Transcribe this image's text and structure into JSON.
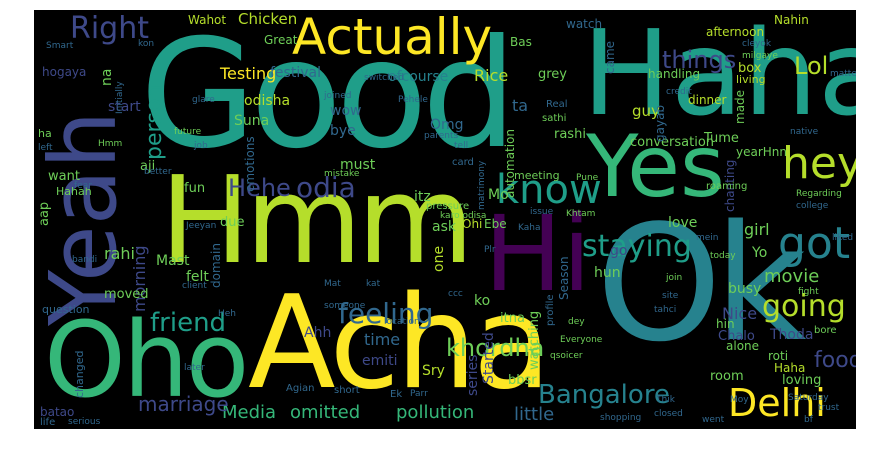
{
  "colors": {
    "background": "#000000",
    "page": "#ffffff",
    "palette": [
      "#fde725",
      "#b5de2b",
      "#6ece58",
      "#35b779",
      "#1f9e89",
      "#26828e",
      "#31688e",
      "#3e4989",
      "#482878",
      "#440154"
    ]
  },
  "words": {
    "good": "Good",
    "haha": "Haha",
    "yeah": "Yeah",
    "ok": "Ok",
    "hmm": "Hmm",
    "acha": "Acha",
    "oho": "Oho",
    "yes": "Yes",
    "hi": "Hi",
    "actually": "Actually",
    "right": "Right",
    "hey": "hey",
    "know": "know",
    "got": "got",
    "delhi": "Delhi",
    "bangalore": "Bangalore",
    "hehe": "Hehe",
    "odia": "odia",
    "going": "going",
    "friend": "friend",
    "staying": "staying",
    "khordha": "khordha",
    "feeling": "feeling",
    "lol": "Lol",
    "things": "things",
    "food": "food",
    "media": "Media",
    "omitted": "omitted",
    "pollution": "pollution",
    "marriage": "marriage",
    "little": "little",
    "person": "person",
    "testing": "Testing",
    "festival": "festival",
    "odisha": "odisha",
    "chicken": "Chicken",
    "wahot": "Wahot",
    "nahin": "Nahin",
    "afternoon": "afternoon",
    "watch": "watch",
    "great": "Great",
    "ofcourse": "ofcourse",
    "rice": "Rice",
    "bas": "Bas",
    "grey": "grey",
    "handling": "handling",
    "box": "box",
    "living": "living",
    "made": "made",
    "came": "came",
    "credit": "credit",
    "dinner": "dinner",
    "guy": "guy",
    "gayab": "gayab",
    "tume": "Tume",
    "year": "yearHnn",
    "conversation": "conversation",
    "automation": "automation",
    "rashi": "rashi",
    "omg": "Omg",
    "ta": "ta",
    "wow": "wow",
    "bye": "bye",
    "suna": "Suna",
    "emotions": "emotions",
    "aji": "aji",
    "start": "start",
    "na": "na",
    "hogaya": "hogaya",
    "morning": "morning",
    "rahi": "rahi",
    "mast": "Mast",
    "felt": "felt",
    "moved": "moved",
    "question": "question",
    "ahh": "Ahh",
    "time": "time",
    "emiti": "emiti",
    "sry": "Sry",
    "series": "series",
    "started": "Started",
    "itna": "itna",
    "bbsr": "bbsr",
    "room": "room",
    "loving": "loving",
    "roti": "roti",
    "haha_small": "Haha",
    "thoda": "Thoda",
    "nice": "Nice",
    "movie": "movie",
    "busy": "busy",
    "girl": "girl",
    "love": "love",
    "chalo": "Chalo",
    "watching": "watching",
    "hin": "hin",
    "alone": "alone",
    "hun": "hun",
    "go": "go",
    "season": "Season",
    "ko": "ko",
    "one": "one",
    "ask": "ask",
    "ohi": "Ohi",
    "ebe": "Ebe",
    "mo": "Mo",
    "itz": "itz",
    "must": "must",
    "fun": "fun",
    "due": "due",
    "domain": "domain",
    "aap": "aap",
    "want": "want",
    "hahah": "Hahah",
    "yo": "Yo",
    "changed": "changed",
    "batao": "batao",
    "chanting": "chanting",
    "card": "card",
    "meeting": "meeting",
    "saturday": "Saturday",
    "regarding": "Regarding",
    "native": "native",
    "trust": "trust",
    "bore": "bore",
    "fight": "fight",
    "liked": "liked",
    "today": "today",
    "shopping": "shopping",
    "closed": "closed",
    "went": "went",
    "bf": "bf",
    "life": "life",
    "serious": "serious",
    "agian": "Agian",
    "short": "short",
    "later": "later",
    "sathi": "sathi",
    "real": "Real",
    "parents": "parents",
    "tell": "tell",
    "future": "future",
    "job": "job",
    "better": "better",
    "mistake": "mistake",
    "pressure": "pressure",
    "issue": "issue",
    "khtam": "Khtam",
    "karo": "karo odisa",
    "client": "client",
    "bandi": "bandi",
    "jeeyan": "Jeeyan",
    "location": "location",
    "someone": "someone",
    "everyone": "Everyone",
    "roaming": "roaming",
    "pune": "Pune",
    "joined": "joined",
    "switched": "switched",
    "pehele": "Pehele",
    "milgaye": "milgaye",
    "cleyok": "cleyok",
    "matter": "matter",
    "initially": "Initially",
    "smart": "Smart",
    "kon": "kon",
    "glare": "glare",
    "left": "left",
    "fear": "fear",
    "ha": "ha",
    "hmm_small": "Hmm",
    "moy": "Moy",
    "thik": "Thik",
    "parr": "Parr",
    "profile": "profile",
    "plr": "Plr",
    "join": "join",
    "site": "site",
    "tahci": "tahci",
    "mein": "mein",
    "dey": "dey",
    "ccc": "ccc",
    "kat": "kat",
    "mat": "Mat",
    "heh": "Heh",
    "qsoicer": "qsoicer",
    "kaha": "Kaha",
    "matrimony": "matrimony",
    "college": "college",
    "ek": "Ek"
  }
}
